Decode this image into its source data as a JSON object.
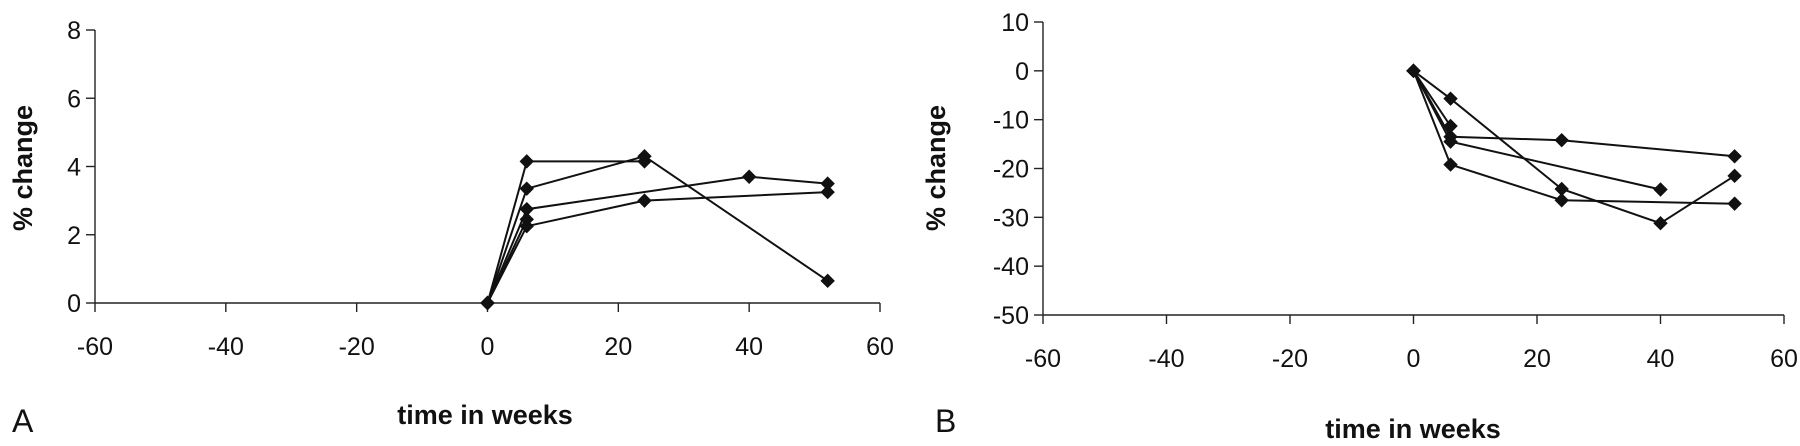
{
  "chart_data": [
    {
      "panel": "A",
      "type": "line",
      "xlabel": "time in weeks",
      "ylabel": "% change",
      "xlim": [
        -60,
        60
      ],
      "ylim": [
        0,
        8
      ],
      "xticks": [
        -60,
        -40,
        -20,
        0,
        20,
        40,
        60
      ],
      "yticks": [
        0,
        2,
        4,
        6,
        8
      ],
      "grid": false,
      "marker": "diamond",
      "series": [
        {
          "x": [
            0,
            6,
            24
          ],
          "y": [
            0,
            4.15,
            4.15
          ]
        },
        {
          "x": [
            0,
            6,
            24,
            52
          ],
          "y": [
            0,
            3.35,
            4.3,
            0.65
          ]
        },
        {
          "x": [
            0,
            6,
            40,
            52
          ],
          "y": [
            0,
            2.75,
            3.7,
            3.5
          ]
        },
        {
          "x": [
            0,
            6,
            24,
            52
          ],
          "y": [
            0,
            2.25,
            3.0,
            3.25
          ]
        },
        {
          "x": [
            0,
            6
          ],
          "y": [
            0,
            2.45
          ]
        }
      ]
    },
    {
      "panel": "B",
      "type": "line",
      "xlabel": "time in weeks",
      "ylabel": "% change",
      "xlim": [
        -60,
        60
      ],
      "ylim": [
        -50,
        10
      ],
      "xticks": [
        -60,
        -40,
        -20,
        0,
        20,
        40,
        60
      ],
      "yticks": [
        -50,
        -40,
        -30,
        -20,
        -10,
        0,
        10
      ],
      "grid": false,
      "marker": "diamond",
      "series": [
        {
          "x": [
            0,
            6,
            24,
            52
          ],
          "y": [
            0,
            -13.5,
            -14.2,
            -17.5
          ]
        },
        {
          "x": [
            0,
            6,
            40
          ],
          "y": [
            0,
            -14.5,
            -24.3
          ]
        },
        {
          "x": [
            0,
            6,
            24,
            40,
            52
          ],
          "y": [
            0,
            -5.7,
            -24.2,
            -31.2,
            -21.5
          ]
        },
        {
          "x": [
            0,
            6,
            24,
            52
          ],
          "y": [
            0,
            -19.2,
            -26.5,
            -27.2
          ]
        },
        {
          "x": [
            0,
            6
          ],
          "y": [
            0,
            -11.3
          ]
        }
      ]
    }
  ]
}
